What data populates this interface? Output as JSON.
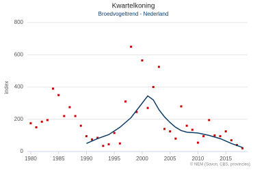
{
  "chart_data": {
    "type": "scatter",
    "title": "Kwartelkoning",
    "subtitle": "Broedvogeltrend - Nederland",
    "y_label": "index",
    "credits": "© NEM (Sovon, CBS, provincies)",
    "xlim": [
      1979.4,
      2018.9
    ],
    "xticks": [
      1980,
      1985,
      1990,
      1995,
      2000,
      2005,
      2010,
      2015
    ],
    "ylim": [
      0,
      800
    ],
    "yticks": [
      0,
      200,
      400,
      600,
      800
    ],
    "grid": true,
    "series": [
      {
        "type": "scatter",
        "color": "#cc0000",
        "x": [
          1980,
          1981,
          1982,
          1983,
          1984,
          1985,
          1986,
          1987,
          1988,
          1989,
          1990,
          1991,
          1992,
          1993,
          1994,
          1995,
          1996,
          1997,
          1998,
          1999,
          2000,
          2001,
          2002,
          2003,
          2004,
          2005,
          2006,
          2007,
          2008,
          2009,
          2010,
          2011,
          2012,
          2013,
          2014,
          2015,
          2016,
          2017,
          2018
        ],
        "values": [
          175,
          150,
          185,
          195,
          390,
          350,
          220,
          275,
          220,
          160,
          95,
          75,
          85,
          35,
          45,
          115,
          50,
          310,
          650,
          245,
          565,
          270,
          400,
          525,
          140,
          125,
          80,
          280,
          160,
          135,
          55,
          95,
          195,
          100,
          95,
          125,
          70,
          40,
          20
        ]
      },
      {
        "type": "line",
        "color": "#0d3b66",
        "x": [
          1990,
          1992,
          1994,
          1996,
          1998,
          2000,
          2001,
          2002,
          2003,
          2004,
          2005,
          2006,
          2007,
          2008,
          2010,
          2012,
          2014,
          2016,
          2018
        ],
        "values": [
          50,
          80,
          105,
          150,
          210,
          300,
          345,
          320,
          260,
          215,
          180,
          150,
          130,
          120,
          115,
          100,
          80,
          50,
          25
        ]
      }
    ]
  }
}
